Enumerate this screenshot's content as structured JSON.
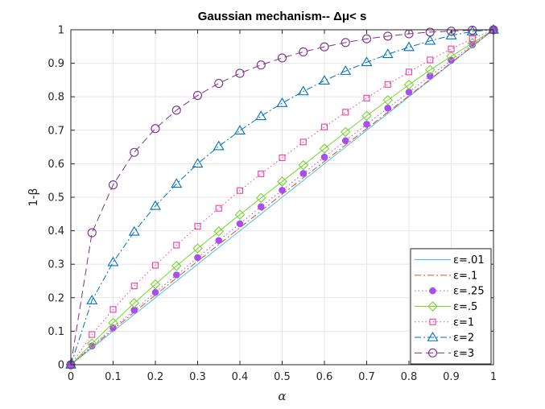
{
  "chart_data": {
    "type": "line",
    "title": "Gaussian mechanism-- Δμ< s",
    "xlabel": "α",
    "ylabel": "1-β",
    "xlim": [
      0,
      1
    ],
    "ylim": [
      0,
      1
    ],
    "xticks": [
      "0",
      "0.1",
      "0.2",
      "0.3",
      "0.4",
      "0.5",
      "0.6",
      "0.7",
      "0.8",
      "0.9",
      "1"
    ],
    "yticks": [
      "0",
      "0.1",
      "0.2",
      "0.3",
      "0.4",
      "0.5",
      "0.6",
      "0.7",
      "0.8",
      "0.9",
      "1"
    ],
    "grid": true,
    "legend_position": "bottom-right",
    "x": [
      0,
      0.05,
      0.1,
      0.15,
      0.2,
      0.25,
      0.3,
      0.35,
      0.4,
      0.45,
      0.5,
      0.55,
      0.6,
      0.65,
      0.7,
      0.75,
      0.8,
      0.85,
      0.9,
      0.95,
      1
    ],
    "series": [
      {
        "name": "ε=.01",
        "color": "#4dbeee",
        "line": "solid",
        "marker": "none",
        "values": [
          0,
          0.05,
          0.1,
          0.15,
          0.2,
          0.25,
          0.3,
          0.35,
          0.4,
          0.45,
          0.5,
          0.55,
          0.6,
          0.65,
          0.7,
          0.75,
          0.8,
          0.85,
          0.9,
          0.95,
          1
        ]
      },
      {
        "name": "ε=.1",
        "color": "#d95319",
        "line": "dashdot",
        "marker": "none",
        "values": [
          0,
          0.053,
          0.105,
          0.157,
          0.208,
          0.259,
          0.309,
          0.359,
          0.409,
          0.459,
          0.509,
          0.558,
          0.607,
          0.656,
          0.705,
          0.754,
          0.803,
          0.852,
          0.902,
          0.951,
          1
        ]
      },
      {
        "name": "ε=.25",
        "color": "#a84ef0",
        "line": "dotted",
        "marker": "filled-circle",
        "values": [
          0,
          0.056,
          0.11,
          0.163,
          0.216,
          0.268,
          0.32,
          0.371,
          0.421,
          0.472,
          0.521,
          0.571,
          0.62,
          0.669,
          0.718,
          0.766,
          0.814,
          0.862,
          0.909,
          0.955,
          1
        ]
      },
      {
        "name": "ε=.5",
        "color": "#77d52c",
        "line": "solid",
        "marker": "diamond",
        "values": [
          0,
          0.063,
          0.125,
          0.184,
          0.24,
          0.295,
          0.347,
          0.398,
          0.448,
          0.498,
          0.547,
          0.596,
          0.645,
          0.695,
          0.743,
          0.79,
          0.836,
          0.88,
          0.921,
          0.96,
          1
        ]
      },
      {
        "name": "ε=1",
        "color": "#ef3f9a",
        "line": "dotted",
        "marker": "square",
        "values": [
          0,
          0.09,
          0.165,
          0.235,
          0.297,
          0.357,
          0.413,
          0.467,
          0.52,
          0.57,
          0.618,
          0.665,
          0.71,
          0.754,
          0.796,
          0.837,
          0.874,
          0.91,
          0.943,
          0.973,
          1
        ]
      },
      {
        "name": "ε=2",
        "color": "#0072bd",
        "line": "dashdot",
        "marker": "triangle",
        "values": [
          0,
          0.192,
          0.306,
          0.397,
          0.474,
          0.54,
          0.6,
          0.652,
          0.699,
          0.742,
          0.781,
          0.816,
          0.848,
          0.877,
          0.903,
          0.927,
          0.948,
          0.967,
          0.983,
          0.995,
          1
        ]
      },
      {
        "name": "ε=3",
        "color": "#7e2f8e",
        "line": "dashed",
        "marker": "circle",
        "values": [
          0,
          0.394,
          0.537,
          0.634,
          0.705,
          0.76,
          0.804,
          0.84,
          0.87,
          0.895,
          0.916,
          0.934,
          0.949,
          0.962,
          0.973,
          0.981,
          0.988,
          0.993,
          0.996,
          0.999,
          1
        ]
      }
    ]
  }
}
